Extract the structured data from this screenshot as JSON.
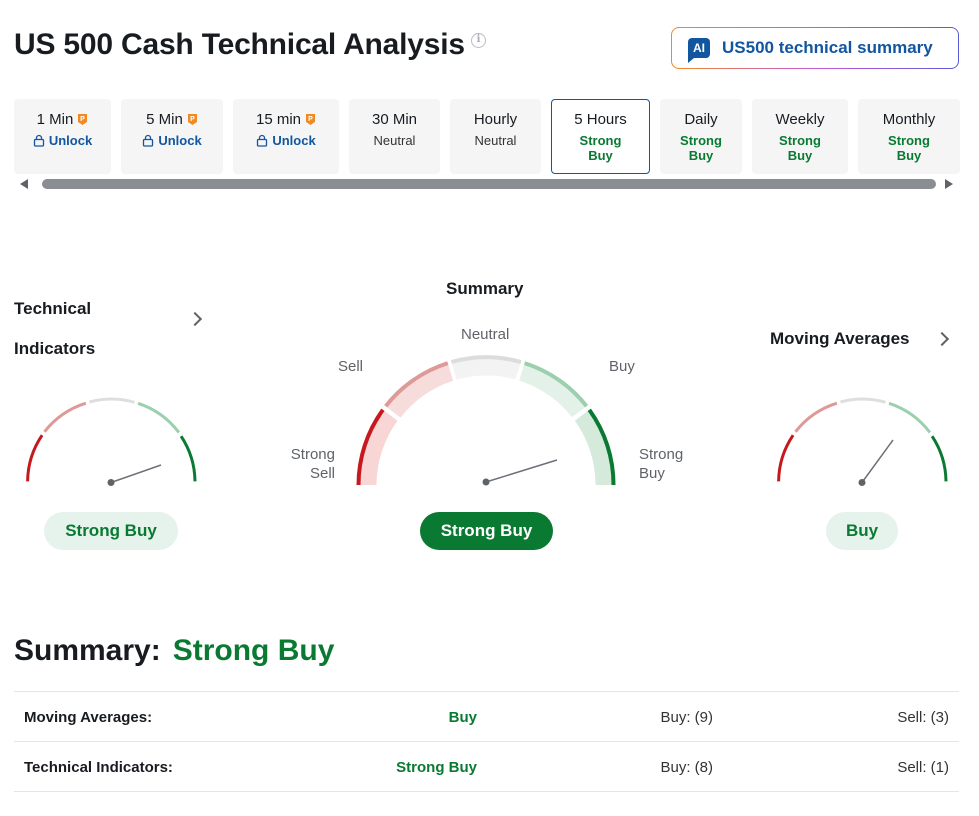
{
  "header": {
    "title": "US 500 Cash Technical Analysis",
    "ai_button_badge": "AI",
    "ai_button_label": "US500 technical summary"
  },
  "tabs": [
    {
      "name": "1 Min",
      "status": "Unlock",
      "locked": true
    },
    {
      "name": "5 Min",
      "status": "Unlock",
      "locked": true
    },
    {
      "name": "15 min",
      "status": "Unlock",
      "locked": true
    },
    {
      "name": "30 Min",
      "status": "Neutral",
      "locked": false
    },
    {
      "name": "Hourly",
      "status": "Neutral",
      "locked": false
    },
    {
      "name": "5 Hours",
      "status": "Strong Buy",
      "locked": false,
      "active": true
    },
    {
      "name": "Daily",
      "status": "Strong Buy",
      "locked": false
    },
    {
      "name": "Weekly",
      "status": "Strong Buy",
      "locked": false
    },
    {
      "name": "Monthly",
      "status": "Strong Buy",
      "locked": false
    }
  ],
  "gauges": {
    "technical": {
      "title_line1": "Technical",
      "title_line2": "Indicators",
      "result": "Strong Buy"
    },
    "summary": {
      "title": "Summary",
      "result": "Strong Buy",
      "labels": {
        "neutral": "Neutral",
        "sell": "Sell",
        "buy": "Buy",
        "strong_sell_1": "Strong",
        "strong_sell_2": "Sell",
        "strong_buy_1": "Strong",
        "strong_buy_2": "Buy"
      }
    },
    "moving_averages": {
      "title": "Moving Averages",
      "result": "Buy"
    }
  },
  "summary": {
    "label": "Summary:",
    "value": "Strong Buy",
    "rows": [
      {
        "name": "Moving Averages:",
        "value": "Buy",
        "buy": "Buy: (9)",
        "sell": "Sell: (3)"
      },
      {
        "name": "Technical Indicators:",
        "value": "Strong Buy",
        "buy": "Buy: (8)",
        "sell": "Sell: (1)"
      }
    ]
  },
  "colors": {
    "brand_blue": "#1256a0",
    "buy_green": "#0a7a33",
    "sell_red": "#c6191e",
    "pro_orange": "#f08a24"
  }
}
